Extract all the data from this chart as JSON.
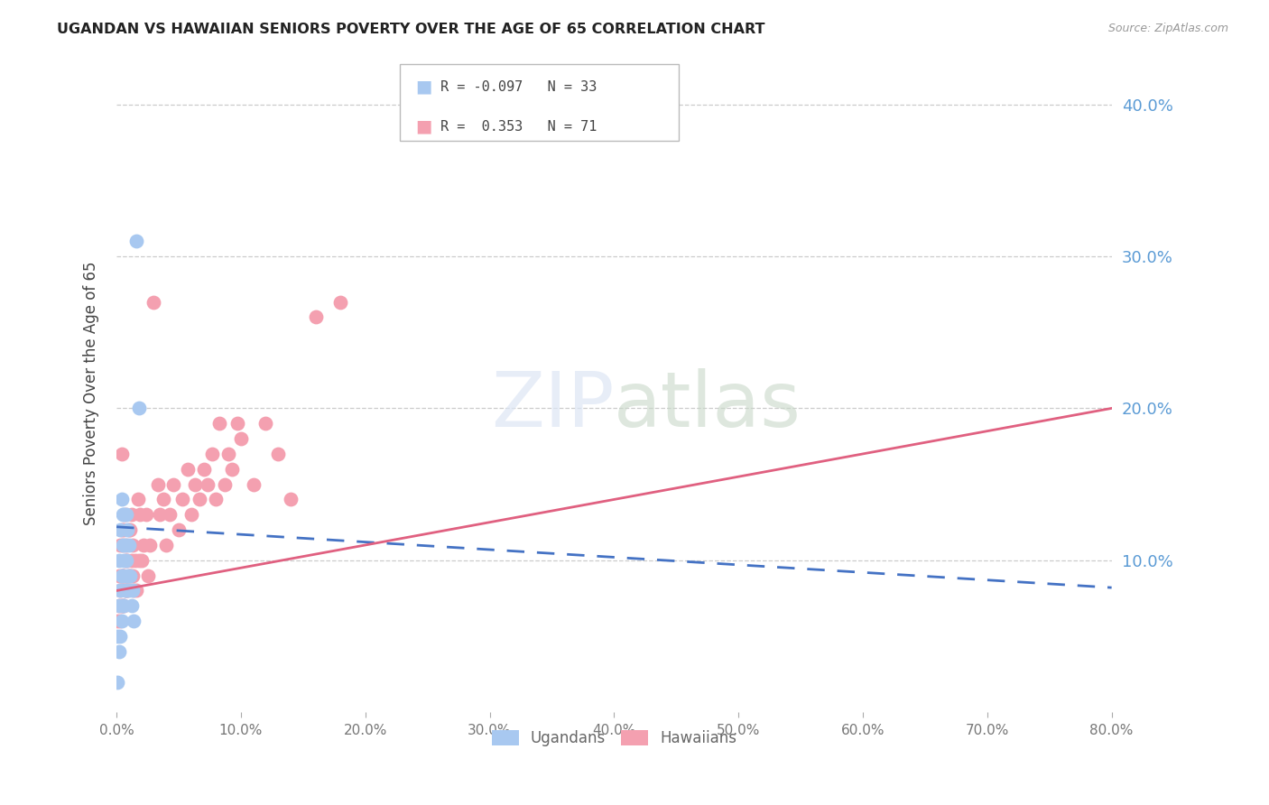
{
  "title": "UGANDAN VS HAWAIIAN SENIORS POVERTY OVER THE AGE OF 65 CORRELATION CHART",
  "source": "Source: ZipAtlas.com",
  "ylabel": "Seniors Poverty Over the Age of 65",
  "xlim": [
    0.0,
    0.8
  ],
  "ylim": [
    0.0,
    0.42
  ],
  "yticks": [
    0.1,
    0.2,
    0.3,
    0.4
  ],
  "xticks": [
    0.0,
    0.1,
    0.2,
    0.3,
    0.4,
    0.5,
    0.6,
    0.7,
    0.8
  ],
  "ugandan_R": -0.097,
  "ugandan_N": 33,
  "hawaiian_R": 0.353,
  "hawaiian_N": 71,
  "ugandan_color": "#a8c8f0",
  "hawaiian_color": "#f4a0b0",
  "ugandan_line_color": "#4472c4",
  "hawaiian_line_color": "#e06080",
  "background_color": "#ffffff",
  "ugandan_x": [
    0.001,
    0.001,
    0.002,
    0.002,
    0.002,
    0.003,
    0.003,
    0.003,
    0.004,
    0.004,
    0.004,
    0.005,
    0.005,
    0.005,
    0.005,
    0.006,
    0.006,
    0.006,
    0.007,
    0.007,
    0.008,
    0.008,
    0.008,
    0.009,
    0.009,
    0.01,
    0.01,
    0.011,
    0.012,
    0.013,
    0.014,
    0.016,
    0.018
  ],
  "ugandan_y": [
    0.02,
    0.05,
    0.04,
    0.07,
    0.1,
    0.05,
    0.08,
    0.12,
    0.06,
    0.09,
    0.14,
    0.07,
    0.09,
    0.11,
    0.13,
    0.07,
    0.1,
    0.13,
    0.08,
    0.11,
    0.08,
    0.1,
    0.13,
    0.09,
    0.12,
    0.08,
    0.11,
    0.09,
    0.07,
    0.08,
    0.06,
    0.31,
    0.2
  ],
  "hawaiian_x": [
    0.001,
    0.002,
    0.002,
    0.003,
    0.003,
    0.003,
    0.004,
    0.004,
    0.004,
    0.004,
    0.005,
    0.005,
    0.005,
    0.006,
    0.006,
    0.006,
    0.007,
    0.007,
    0.007,
    0.008,
    0.008,
    0.009,
    0.009,
    0.01,
    0.01,
    0.011,
    0.011,
    0.012,
    0.012,
    0.013,
    0.013,
    0.014,
    0.015,
    0.016,
    0.017,
    0.018,
    0.019,
    0.02,
    0.022,
    0.024,
    0.025,
    0.027,
    0.03,
    0.033,
    0.035,
    0.038,
    0.04,
    0.043,
    0.046,
    0.05,
    0.053,
    0.057,
    0.06,
    0.063,
    0.067,
    0.07,
    0.073,
    0.077,
    0.08,
    0.083,
    0.087,
    0.09,
    0.093,
    0.097,
    0.1,
    0.11,
    0.12,
    0.13,
    0.14,
    0.16,
    0.18
  ],
  "hawaiian_y": [
    0.06,
    0.07,
    0.09,
    0.06,
    0.08,
    0.11,
    0.07,
    0.09,
    0.12,
    0.17,
    0.07,
    0.09,
    0.11,
    0.07,
    0.09,
    0.12,
    0.08,
    0.1,
    0.13,
    0.08,
    0.11,
    0.08,
    0.1,
    0.09,
    0.12,
    0.09,
    0.12,
    0.1,
    0.13,
    0.09,
    0.11,
    0.08,
    0.1,
    0.08,
    0.14,
    0.1,
    0.13,
    0.1,
    0.11,
    0.13,
    0.09,
    0.11,
    0.27,
    0.15,
    0.13,
    0.14,
    0.11,
    0.13,
    0.15,
    0.12,
    0.14,
    0.16,
    0.13,
    0.15,
    0.14,
    0.16,
    0.15,
    0.17,
    0.14,
    0.19,
    0.15,
    0.17,
    0.16,
    0.19,
    0.18,
    0.15,
    0.19,
    0.17,
    0.14,
    0.26,
    0.27
  ],
  "ug_line_x0": 0.0,
  "ug_line_x1": 0.8,
  "ug_line_y0": 0.122,
  "ug_line_y1": 0.082,
  "hw_line_x0": 0.0,
  "hw_line_x1": 0.8,
  "hw_line_y0": 0.08,
  "hw_line_y1": 0.2
}
